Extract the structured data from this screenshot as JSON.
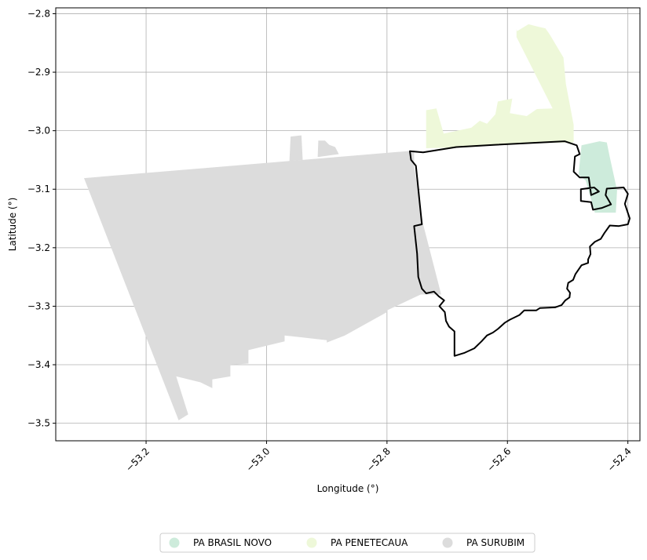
{
  "chart_data": {
    "type": "map",
    "xlabel": "Longitude (°)",
    "ylabel": "Latitude (°)",
    "xlim": [
      -53.35,
      -52.38
    ],
    "ylim": [
      -3.53,
      -2.79
    ],
    "grid": true,
    "x_ticks": [
      {
        "value": -53.2,
        "label": "−53.2"
      },
      {
        "value": -53.0,
        "label": "−53.0"
      },
      {
        "value": -52.8,
        "label": "−52.8"
      },
      {
        "value": -52.6,
        "label": "−52.6"
      },
      {
        "value": -52.4,
        "label": "−52.4"
      }
    ],
    "y_ticks": [
      {
        "value": -2.8,
        "label": "−2.8"
      },
      {
        "value": -2.9,
        "label": "−2.9"
      },
      {
        "value": -3.0,
        "label": "−3.0"
      },
      {
        "value": -3.1,
        "label": "−3.1"
      },
      {
        "value": -3.2,
        "label": "−3.2"
      },
      {
        "value": -3.3,
        "label": "−3.3"
      },
      {
        "value": -3.4,
        "label": "−3.4"
      },
      {
        "value": -3.5,
        "label": "−3.5"
      }
    ],
    "legend_position": "bottom-center",
    "legend": [
      {
        "label": "PA BRASIL NOVO",
        "color": "#cdebdb"
      },
      {
        "label": "PA PENETECAUA",
        "color": "#eef8d9"
      },
      {
        "label": "PA SURUBIM",
        "color": "#dcdcdc"
      }
    ],
    "regions": [
      {
        "key": "surubim",
        "color": "#dcdcdc",
        "coords": [
          [
            -53.303,
            -3.081
          ],
          [
            -52.755,
            -3.034
          ],
          [
            -52.755,
            -3.06
          ],
          [
            -52.74,
            -3.16
          ],
          [
            -52.71,
            -3.28
          ],
          [
            -52.744,
            -3.28
          ],
          [
            -52.8,
            -3.307
          ],
          [
            -52.8,
            -3.31
          ],
          [
            -52.87,
            -3.35
          ],
          [
            -52.9,
            -3.362
          ],
          [
            -52.9,
            -3.358
          ],
          [
            -52.97,
            -3.35
          ],
          [
            -52.97,
            -3.36
          ],
          [
            -53.03,
            -3.375
          ],
          [
            -53.03,
            -3.398
          ],
          [
            -53.06,
            -3.4
          ],
          [
            -53.06,
            -3.42
          ],
          [
            -53.09,
            -3.425
          ],
          [
            -53.09,
            -3.44
          ],
          [
            -53.11,
            -3.43
          ],
          [
            -53.15,
            -3.42
          ],
          [
            -53.13,
            -3.485
          ],
          [
            -53.146,
            -3.495
          ]
        ]
      },
      {
        "key": "surubim-notch-a",
        "color": "#dcdcdc",
        "coords": [
          [
            -52.96,
            -3.01
          ],
          [
            -52.942,
            -3.008
          ],
          [
            -52.94,
            -3.05
          ],
          [
            -52.962,
            -3.052
          ]
        ]
      },
      {
        "key": "surubim-notch-b",
        "color": "#dcdcdc",
        "coords": [
          [
            -52.914,
            -3.017
          ],
          [
            -52.903,
            -3.017
          ],
          [
            -52.896,
            -3.024
          ],
          [
            -52.886,
            -3.028
          ],
          [
            -52.88,
            -3.04
          ],
          [
            -52.915,
            -3.045
          ]
        ]
      },
      {
        "key": "penetecaua",
        "color": "#eef8d9",
        "coords": [
          [
            -52.735,
            -3.03
          ],
          [
            -52.735,
            -2.965
          ],
          [
            -52.718,
            -2.962
          ],
          [
            -52.706,
            -3.005
          ],
          [
            -52.66,
            -2.995
          ],
          [
            -52.646,
            -2.983
          ],
          [
            -52.634,
            -2.988
          ],
          [
            -52.62,
            -2.972
          ],
          [
            -52.616,
            -2.95
          ],
          [
            -52.592,
            -2.945
          ],
          [
            -52.596,
            -2.97
          ],
          [
            -52.568,
            -2.975
          ],
          [
            -52.551,
            -2.963
          ],
          [
            -52.525,
            -2.962
          ],
          [
            -52.585,
            -2.84
          ],
          [
            -52.585,
            -2.826
          ],
          [
            -52.584,
            -2.83
          ],
          [
            -52.565,
            -2.818
          ],
          [
            -52.55,
            -2.822
          ],
          [
            -52.537,
            -2.825
          ],
          [
            -52.53,
            -2.835
          ],
          [
            -52.507,
            -2.875
          ],
          [
            -52.503,
            -2.92
          ],
          [
            -52.49,
            -2.99
          ],
          [
            -52.49,
            -3.02
          ],
          [
            -52.59,
            -3.022
          ],
          [
            -52.66,
            -3.028
          ]
        ]
      },
      {
        "key": "brasil-novo",
        "color": "#cdebdb",
        "coords": [
          [
            -52.477,
            -3.025
          ],
          [
            -52.447,
            -3.018
          ],
          [
            -52.435,
            -3.02
          ],
          [
            -52.43,
            -3.045
          ],
          [
            -52.418,
            -3.102
          ],
          [
            -52.42,
            -3.14
          ],
          [
            -52.455,
            -3.14
          ],
          [
            -52.47,
            -3.085
          ],
          [
            -52.482,
            -3.075
          ]
        ]
      }
    ],
    "outline": {
      "color": "#000000",
      "coords": [
        [
          -52.762,
          -3.035
        ],
        [
          -52.76,
          -3.05
        ],
        [
          -52.752,
          -3.06
        ],
        [
          -52.742,
          -3.16
        ],
        [
          -52.755,
          -3.163
        ],
        [
          -52.75,
          -3.21
        ],
        [
          -52.748,
          -3.25
        ],
        [
          -52.742,
          -3.27
        ],
        [
          -52.735,
          -3.278
        ],
        [
          -52.722,
          -3.275
        ],
        [
          -52.714,
          -3.283
        ],
        [
          -52.705,
          -3.29
        ],
        [
          -52.713,
          -3.3
        ],
        [
          -52.704,
          -3.31
        ],
        [
          -52.702,
          -3.325
        ],
        [
          -52.697,
          -3.335
        ],
        [
          -52.688,
          -3.343
        ],
        [
          -52.688,
          -3.36
        ],
        [
          -52.688,
          -3.385
        ],
        [
          -52.672,
          -3.38
        ],
        [
          -52.655,
          -3.372
        ],
        [
          -52.643,
          -3.36
        ],
        [
          -52.634,
          -3.35
        ],
        [
          -52.624,
          -3.345
        ],
        [
          -52.616,
          -3.339
        ],
        [
          -52.604,
          -3.328
        ],
        [
          -52.596,
          -3.323
        ],
        [
          -52.586,
          -3.318
        ],
        [
          -52.58,
          -3.315
        ],
        [
          -52.572,
          -3.307
        ],
        [
          -52.552,
          -3.307
        ],
        [
          -52.546,
          -3.303
        ],
        [
          -52.521,
          -3.302
        ],
        [
          -52.51,
          -3.298
        ],
        [
          -52.504,
          -3.29
        ],
        [
          -52.497,
          -3.285
        ],
        [
          -52.496,
          -3.277
        ],
        [
          -52.501,
          -3.27
        ],
        [
          -52.499,
          -3.26
        ],
        [
          -52.491,
          -3.255
        ],
        [
          -52.487,
          -3.245
        ],
        [
          -52.477,
          -3.23
        ],
        [
          -52.466,
          -3.226
        ],
        [
          -52.466,
          -3.22
        ],
        [
          -52.462,
          -3.211
        ],
        [
          -52.463,
          -3.198
        ],
        [
          -52.455,
          -3.19
        ],
        [
          -52.445,
          -3.185
        ],
        [
          -52.439,
          -3.175
        ],
        [
          -52.43,
          -3.162
        ],
        [
          -52.415,
          -3.163
        ],
        [
          -52.4,
          -3.16
        ],
        [
          -52.397,
          -3.15
        ],
        [
          -52.405,
          -3.125
        ],
        [
          -52.4,
          -3.108
        ],
        [
          -52.407,
          -3.097
        ],
        [
          -52.435,
          -3.099
        ],
        [
          -52.437,
          -3.11
        ],
        [
          -52.428,
          -3.126
        ],
        [
          -52.443,
          -3.132
        ],
        [
          -52.458,
          -3.135
        ],
        [
          -52.461,
          -3.122
        ],
        [
          -52.478,
          -3.12
        ],
        [
          -52.478,
          -3.1
        ],
        [
          -52.456,
          -3.097
        ],
        [
          -52.448,
          -3.104
        ],
        [
          -52.461,
          -3.11
        ],
        [
          -52.465,
          -3.08
        ],
        [
          -52.48,
          -3.08
        ],
        [
          -52.49,
          -3.07
        ],
        [
          -52.488,
          -3.044
        ],
        [
          -52.48,
          -3.04
        ],
        [
          -52.485,
          -3.025
        ],
        [
          -52.505,
          -3.018
        ],
        [
          -52.62,
          -3.024
        ],
        [
          -52.685,
          -3.028
        ],
        [
          -52.74,
          -3.037
        ],
        [
          -52.762,
          -3.035
        ]
      ]
    }
  }
}
